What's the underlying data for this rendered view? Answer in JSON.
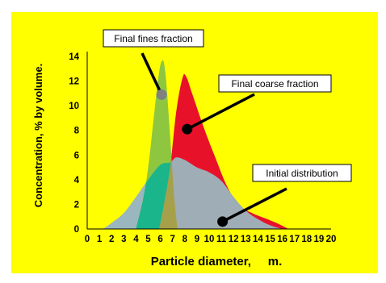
{
  "colors": {
    "background": "#FFFF00",
    "frame": "#FFFFFF",
    "fines": "#8EC63F",
    "coarse": "#E8112A",
    "initial": "#9AB6BE",
    "overlap_initial_fines": "#1AB58A",
    "overlap_all": "#A6A04A",
    "overlap_initial_coarse": "#B08A9A",
    "pointer_dark": "#000000",
    "pointer_grey": "#808080"
  },
  "chart_data": {
    "type": "area",
    "xlabel": "Particle diameter,     m.",
    "ylabel": "Concentration, % by volume.",
    "xlim": [
      0,
      20
    ],
    "ylim": [
      0,
      14
    ],
    "x_ticks": [
      "0",
      "1",
      "2",
      "3",
      "4",
      "5",
      "6",
      "7",
      "8",
      "9",
      "10",
      "11",
      "12",
      "13",
      "14",
      "15",
      "16",
      "17",
      "18",
      "19",
      "20"
    ],
    "y_ticks": [
      "0",
      "2",
      "4",
      "6",
      "8",
      "10",
      "12",
      "14"
    ],
    "series": [
      {
        "name": "Initial distribution",
        "color_key": "initial",
        "points": [
          [
            1.3,
            0
          ],
          [
            2,
            0.5
          ],
          [
            3,
            1.3
          ],
          [
            4,
            2.6
          ],
          [
            5,
            4
          ],
          [
            6,
            5.2
          ],
          [
            6.8,
            5.4
          ],
          [
            7.3,
            5.8
          ],
          [
            8,
            5.6
          ],
          [
            9,
            5
          ],
          [
            10,
            4.6
          ],
          [
            11,
            3.9
          ],
          [
            12,
            2.6
          ],
          [
            13,
            1.5
          ],
          [
            14,
            0.8
          ],
          [
            15,
            0.3
          ],
          [
            16,
            0
          ]
        ]
      },
      {
        "name": "Final fines fraction",
        "color_key": "fines",
        "points": [
          [
            4,
            0
          ],
          [
            4.6,
            2.5
          ],
          [
            5,
            5
          ],
          [
            5.4,
            8.5
          ],
          [
            5.8,
            12
          ],
          [
            6.1,
            13.6
          ],
          [
            6.4,
            12.8
          ],
          [
            6.8,
            7.5
          ],
          [
            7.1,
            3
          ],
          [
            7.4,
            0
          ]
        ]
      },
      {
        "name": "Final coarse fraction",
        "color_key": "coarse",
        "points": [
          [
            5.9,
            0
          ],
          [
            6.3,
            2
          ],
          [
            6.8,
            5
          ],
          [
            7.3,
            9.5
          ],
          [
            7.8,
            12.2
          ],
          [
            8.1,
            12.4
          ],
          [
            8.6,
            11
          ],
          [
            9.5,
            8.4
          ],
          [
            10.5,
            5.8
          ],
          [
            11.5,
            3.4
          ],
          [
            12.5,
            1.9
          ],
          [
            13.5,
            1.3
          ],
          [
            14.5,
            0.9
          ],
          [
            15.5,
            0.5
          ],
          [
            16.5,
            0
          ]
        ]
      }
    ],
    "annotations": [
      {
        "label": "Final fines fraction",
        "target": [
          6.1,
          10.9
        ],
        "dot": "grey"
      },
      {
        "label": "Final coarse fraction",
        "target": [
          8.2,
          8.1
        ],
        "dot": "black"
      },
      {
        "label": "Initial distribution",
        "target": [
          11.1,
          0.6
        ],
        "dot": "black"
      }
    ]
  }
}
